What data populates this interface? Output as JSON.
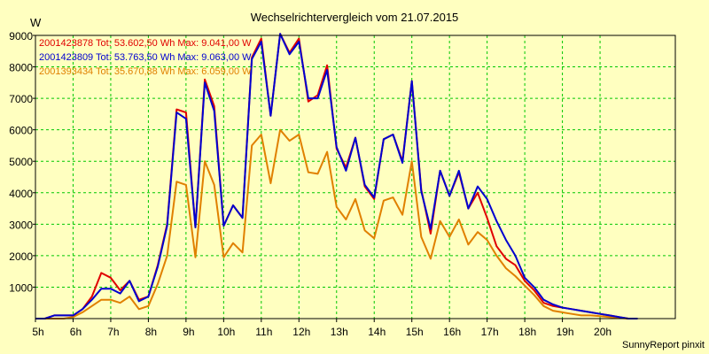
{
  "chart_data": {
    "type": "line",
    "title": "Wechselrichtervergleich vom 21.07.2015",
    "ylabel": "W",
    "xlabel": "",
    "xlim": [
      5,
      22
    ],
    "ylim": [
      0,
      9000
    ],
    "grid": true,
    "x_ticks": [
      {
        "value": 5,
        "label": "5h"
      },
      {
        "value": 6,
        "label": "6h"
      },
      {
        "value": 7,
        "label": "7h"
      },
      {
        "value": 8,
        "label": "8h"
      },
      {
        "value": 9,
        "label": "9h"
      },
      {
        "value": 10,
        "label": "10h"
      },
      {
        "value": 11,
        "label": "11h"
      },
      {
        "value": 12,
        "label": "12h"
      },
      {
        "value": 13,
        "label": "13h"
      },
      {
        "value": 14,
        "label": "14h"
      },
      {
        "value": 15,
        "label": "15h"
      },
      {
        "value": 16,
        "label": "16h"
      },
      {
        "value": 17,
        "label": "17h"
      },
      {
        "value": 18,
        "label": "18h"
      },
      {
        "value": 19,
        "label": "19h"
      },
      {
        "value": 20,
        "label": "20h"
      }
    ],
    "y_ticks": [
      {
        "value": 1000,
        "label": "1000"
      },
      {
        "value": 2000,
        "label": "2000"
      },
      {
        "value": 3000,
        "label": "3000"
      },
      {
        "value": 4000,
        "label": "4000"
      },
      {
        "value": 5000,
        "label": "5000"
      },
      {
        "value": 6000,
        "label": "6000"
      },
      {
        "value": 7000,
        "label": "7000"
      },
      {
        "value": 8000,
        "label": "8000"
      },
      {
        "value": 9000,
        "label": "9000"
      }
    ],
    "x": [
      5.0,
      5.25,
      5.5,
      5.75,
      6.0,
      6.25,
      6.5,
      6.75,
      7.0,
      7.25,
      7.5,
      7.75,
      8.0,
      8.25,
      8.5,
      8.75,
      9.0,
      9.25,
      9.5,
      9.75,
      10.0,
      10.25,
      10.5,
      10.75,
      11.0,
      11.25,
      11.5,
      11.75,
      12.0,
      12.25,
      12.5,
      12.75,
      13.0,
      13.25,
      13.5,
      13.75,
      14.0,
      14.25,
      14.5,
      14.75,
      15.0,
      15.25,
      15.5,
      15.75,
      16.0,
      16.25,
      16.5,
      16.75,
      17.0,
      17.25,
      17.5,
      17.75,
      18.0,
      18.25,
      18.5,
      18.75,
      19.0,
      19.25,
      19.5,
      19.75,
      20.0,
      20.25,
      20.5,
      20.75,
      21.0
    ],
    "series": [
      {
        "name": "2001423878 Tot: 53.602,50 Wh Max: 9.041,00 W",
        "color": "#e00000",
        "values": [
          0,
          0,
          100,
          100,
          100,
          300,
          700,
          1450,
          1300,
          900,
          1200,
          600,
          700,
          1700,
          3000,
          6650,
          6550,
          2900,
          7600,
          6750,
          2950,
          3600,
          3200,
          8300,
          8900,
          6450,
          9050,
          8450,
          8900,
          6900,
          7100,
          8050,
          5400,
          4800,
          5750,
          4200,
          3800,
          5700,
          5850,
          5000,
          7550,
          4100,
          2700,
          4700,
          3900,
          4650,
          3500,
          4000,
          3200,
          2300,
          1900,
          1700,
          1200,
          900,
          500,
          400,
          350,
          300,
          250,
          200,
          150,
          100,
          50,
          0,
          0
        ]
      },
      {
        "name": "2001423809 Tot: 53.763,50 Wh Max: 9.063,00 W",
        "color": "#0000d0",
        "values": [
          0,
          0,
          100,
          100,
          100,
          300,
          600,
          950,
          950,
          800,
          1200,
          550,
          700,
          1650,
          2950,
          6550,
          6350,
          2900,
          7500,
          6600,
          2950,
          3600,
          3200,
          8250,
          8800,
          6450,
          9050,
          8400,
          8800,
          7000,
          7000,
          7900,
          5450,
          4700,
          5750,
          4250,
          3850,
          5700,
          5850,
          4950,
          7550,
          4050,
          2850,
          4700,
          3900,
          4700,
          3500,
          4200,
          3800,
          3100,
          2500,
          2000,
          1300,
          1000,
          600,
          450,
          350,
          300,
          250,
          200,
          150,
          100,
          50,
          0,
          0
        ]
      },
      {
        "name": "2001393434 Tot: 35.670,88 Wh Max: 6.059,00 W",
        "color": "#e08000",
        "values": [
          0,
          0,
          0,
          0,
          50,
          200,
          400,
          600,
          600,
          500,
          700,
          300,
          400,
          1100,
          2000,
          4350,
          4250,
          1950,
          5000,
          4250,
          1950,
          2400,
          2100,
          5500,
          5850,
          4300,
          6000,
          5650,
          5850,
          4650,
          4600,
          5300,
          3550,
          3150,
          3800,
          2800,
          2550,
          3750,
          3850,
          3300,
          5000,
          2600,
          1900,
          3100,
          2600,
          3150,
          2350,
          2750,
          2500,
          2000,
          1600,
          1350,
          1050,
          750,
          400,
          250,
          200,
          150,
          100,
          100,
          80,
          50,
          20,
          0,
          0
        ]
      }
    ]
  },
  "footer": {
    "credit": "SunnyReport pinxit"
  }
}
